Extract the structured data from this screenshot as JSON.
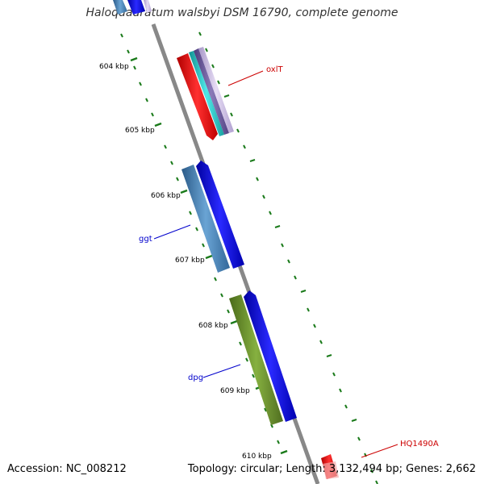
{
  "title": "Haloquadratum walsbyi DSM 16790, complete genome",
  "footer": {
    "accession": "Accession: NC_008212",
    "summary": "Topology: circular; Length: 3,132,494 bp; Genes: 2,662"
  },
  "ticks": [
    {
      "label": "604 kbp"
    },
    {
      "label": "605 kbp"
    },
    {
      "label": "606 kbp"
    },
    {
      "label": "607 kbp"
    },
    {
      "label": "608 kbp"
    },
    {
      "label": "609 kbp"
    },
    {
      "label": "610 kbp"
    }
  ],
  "genes": [
    {
      "label": "oxlT",
      "color": "#cc0000"
    },
    {
      "label": "ggt",
      "color": "#0000cc"
    },
    {
      "label": "dpg",
      "color": "#0000cc"
    },
    {
      "label": "HQ1490A",
      "color": "#cc0000"
    }
  ],
  "colors": {
    "backbone": "#888888",
    "tick": "#1a7a1a",
    "red": "#ff0000",
    "cyan": "#22c8c8",
    "purple": "#6a5a9a",
    "lavender": "#c8b8e0",
    "steelblue": "#4a88c0",
    "blue": "#0000ee",
    "olive": "#6a9a2a"
  }
}
